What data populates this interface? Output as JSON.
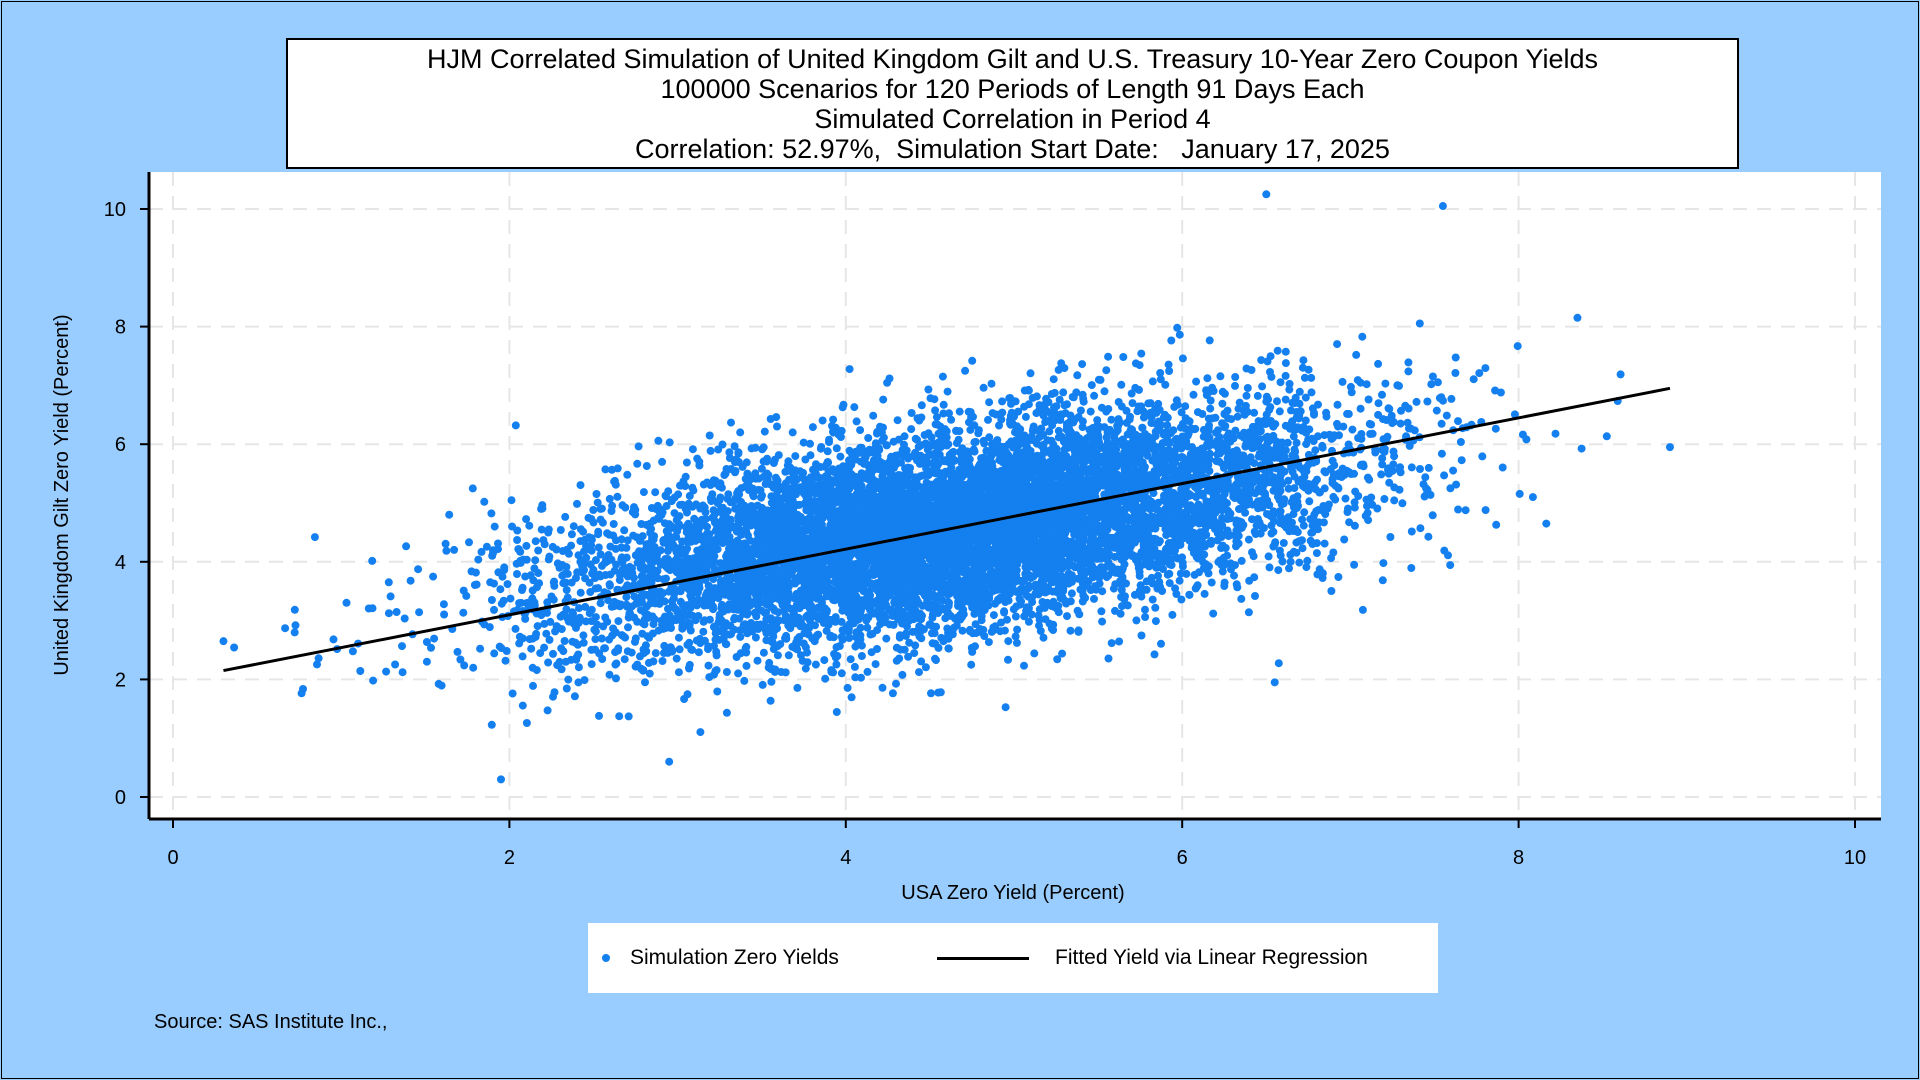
{
  "title_lines": [
    "HJM Correlated Simulation of United Kingdom Gilt and U.S. Treasury 10-Year Zero Coupon Yields",
    "100000 Scenarios for 120 Periods of Length 91 Days Each",
    "Simulated Correlation in Period 4",
    "Correlation: 52.97%,  Simulation Start Date:   January 17, 2025"
  ],
  "legend": {
    "scatter_label": "Simulation Zero Yields",
    "line_label": "Fitted Yield via Linear Regression"
  },
  "source": "Source: SAS Institute Inc.,",
  "colors": {
    "background": "#99ccff",
    "points": "#1480f0",
    "fit_line": "#000000",
    "grid": "#e6e6e6"
  },
  "chart_data": {
    "type": "scatter",
    "xlabel": "USA Zero Yield (Percent)",
    "ylabel": "United Kingdom Gilt Zero Yield (Percent)",
    "xlim": [
      0,
      10
    ],
    "ylim": [
      0,
      10
    ],
    "xticks": [
      0,
      2,
      4,
      6,
      8,
      10
    ],
    "yticks": [
      0,
      2,
      4,
      6,
      8,
      10
    ],
    "grid": true,
    "legend_position": "bottom",
    "correlation_percent": 52.97,
    "scenarios": 100000,
    "series": [
      {
        "name": "Simulation Zero Yields",
        "kind": "scatter",
        "distribution": {
          "x_mean": 4.6,
          "x_sd": 1.15,
          "y_mean": 4.55,
          "y_sd": 1.0,
          "correlation": 0.5297,
          "x_range": [
            0.3,
            8.9
          ],
          "y_range": [
            0.3,
            10.3
          ]
        },
        "notable_points": [
          {
            "x": 0.3,
            "y": 2.65
          },
          {
            "x": 1.95,
            "y": 0.3
          },
          {
            "x": 6.5,
            "y": 10.25
          },
          {
            "x": 7.55,
            "y": 10.05
          },
          {
            "x": 8.9,
            "y": 5.95
          },
          {
            "x": 8.35,
            "y": 8.15
          },
          {
            "x": 6.55,
            "y": 1.95
          },
          {
            "x": 2.95,
            "y": 0.6
          }
        ]
      },
      {
        "name": "Fitted Yield via Linear Regression",
        "kind": "line",
        "x": [
          0.3,
          8.9
        ],
        "y": [
          2.15,
          6.95
        ]
      }
    ]
  }
}
